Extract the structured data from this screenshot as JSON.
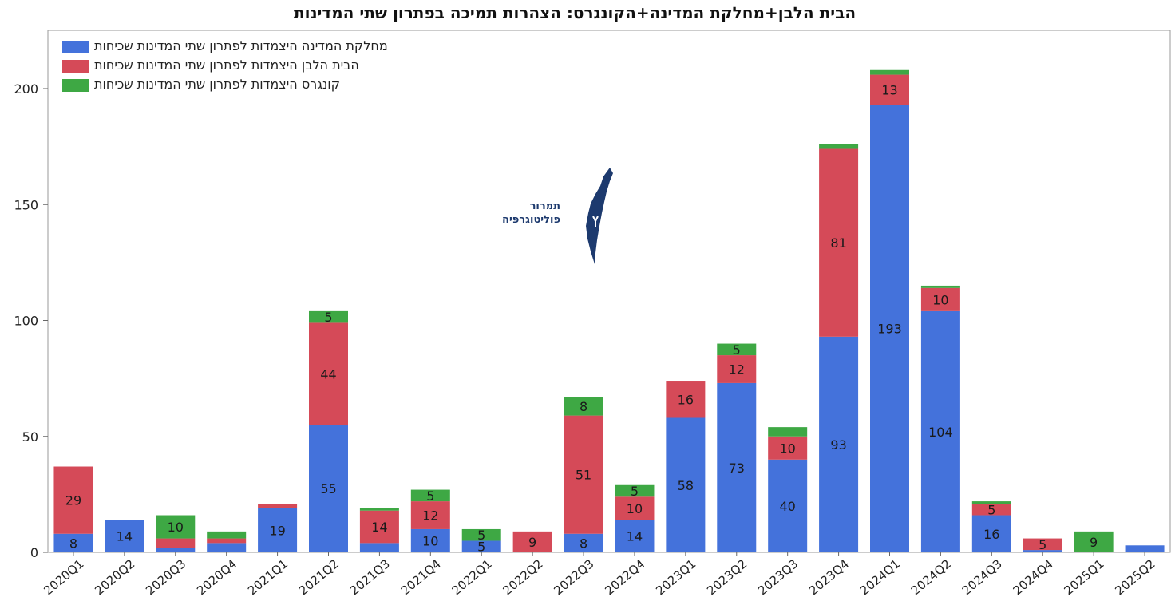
{
  "title": "הבית הלבן+מחלקת המדינה+הקונגרס: הצהרות תמיכה בפתרון שתי המדינות",
  "logo_text": [
    "תמרור",
    "פוליטוגרפיה"
  ],
  "chart_data": {
    "type": "bar",
    "stacked": true,
    "categories": [
      "2020Q1",
      "2020Q2",
      "2020Q3",
      "2020Q4",
      "2021Q1",
      "2021Q2",
      "2021Q3",
      "2021Q4",
      "2022Q1",
      "2022Q2",
      "2022Q3",
      "2022Q4",
      "2023Q1",
      "2023Q2",
      "2023Q3",
      "2023Q4",
      "2024Q1",
      "2024Q2",
      "2024Q3",
      "2024Q4",
      "2025Q1",
      "2025Q2"
    ],
    "series": [
      {
        "name": "מחלקת המדינה היצמדות לפתרון שתי המדינות שכיחות",
        "color": "#4472db",
        "values": [
          8,
          14,
          2,
          4,
          19,
          55,
          4,
          10,
          5,
          0,
          8,
          14,
          58,
          73,
          40,
          93,
          193,
          104,
          16,
          1,
          0,
          3
        ]
      },
      {
        "name": "הבית הלבן היצמדות לפתרון שתי המדינות שכיחות",
        "color": "#d54a58",
        "values": [
          29,
          0,
          4,
          2,
          2,
          44,
          14,
          12,
          0,
          9,
          51,
          10,
          16,
          12,
          10,
          81,
          13,
          10,
          5,
          5,
          0,
          0
        ]
      },
      {
        "name": "קונגרס היצמדות לפתרון שתי המדינות שכיחות",
        "color": "#3ea844",
        "values": [
          0,
          0,
          10,
          3,
          0,
          5,
          1,
          5,
          5,
          0,
          8,
          5,
          0,
          5,
          4,
          2,
          2,
          1,
          1,
          0,
          9,
          0
        ]
      }
    ],
    "data_labels": [
      [
        "8",
        "14",
        "",
        "",
        "19",
        "55",
        "",
        "10",
        "5",
        "",
        "8",
        "14",
        "58",
        "73",
        "40",
        "93",
        "193",
        "104",
        "16",
        "",
        "",
        ""
      ],
      [
        "29",
        "",
        "",
        "",
        "",
        "44",
        "14",
        "12",
        "",
        "9",
        "51",
        "10",
        "16",
        "12",
        "10",
        "81",
        "13",
        "10",
        "5",
        "5",
        "",
        ""
      ],
      [
        "",
        "",
        "10",
        "",
        "",
        "5",
        "",
        "5",
        "5",
        "",
        "8",
        "5",
        "",
        "5",
        "",
        "",
        "",
        "",
        "",
        "",
        "9",
        ""
      ]
    ],
    "yticks": [
      0,
      50,
      100,
      150,
      200
    ],
    "ylim": [
      0,
      225
    ],
    "xlabel": "",
    "ylabel": "",
    "grid": false,
    "legend": "top-left"
  }
}
